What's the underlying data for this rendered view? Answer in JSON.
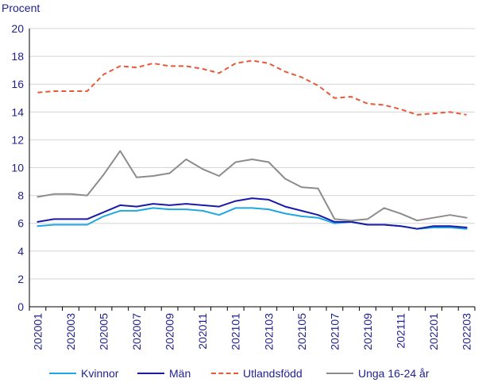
{
  "chart_data": {
    "type": "line",
    "title": "",
    "ylabel": "Procent",
    "xlabel": "",
    "ylim": [
      0,
      20
    ],
    "yticks": [
      "0",
      "2",
      "4",
      "6",
      "8",
      "10",
      "12",
      "14",
      "16",
      "18",
      "20"
    ],
    "x": [
      "202001",
      "202002",
      "202003",
      "202004",
      "202005",
      "202006",
      "202007",
      "202008",
      "202009",
      "202010",
      "202011",
      "202012",
      "202101",
      "202102",
      "202103",
      "202104",
      "202105",
      "202106",
      "202107",
      "202108",
      "202109",
      "202110",
      "202111",
      "202112",
      "202201",
      "202202",
      "202203"
    ],
    "xtick_labels": [
      "202001",
      "202003",
      "202005",
      "202007",
      "202009",
      "202011",
      "202101",
      "202103",
      "202105",
      "202107",
      "202109",
      "202111",
      "202201",
      "202203"
    ],
    "grid": "horizontal",
    "legend": "bottom",
    "series": [
      {
        "name": "Kvinnor",
        "color": "#1ea7e0",
        "dash": "solid",
        "values": [
          5.8,
          5.9,
          5.9,
          5.9,
          6.5,
          6.9,
          6.9,
          7.1,
          7.0,
          7.0,
          6.9,
          6.6,
          7.1,
          7.1,
          7.0,
          6.7,
          6.5,
          6.4,
          6.0,
          6.1,
          5.9,
          5.9,
          5.8,
          5.6,
          5.7,
          5.7,
          5.6
        ]
      },
      {
        "name": "Män",
        "color": "#1a1aa8",
        "dash": "solid",
        "values": [
          6.1,
          6.3,
          6.3,
          6.3,
          6.8,
          7.3,
          7.2,
          7.4,
          7.3,
          7.4,
          7.3,
          7.2,
          7.6,
          7.8,
          7.7,
          7.2,
          6.9,
          6.6,
          6.1,
          6.1,
          5.9,
          5.9,
          5.8,
          5.6,
          5.8,
          5.8,
          5.7
        ]
      },
      {
        "name": "Utlandsfödd",
        "color": "#e8593a",
        "dash": "dashed",
        "values": [
          15.4,
          15.5,
          15.5,
          15.5,
          16.7,
          17.3,
          17.2,
          17.5,
          17.3,
          17.3,
          17.1,
          16.8,
          17.5,
          17.7,
          17.5,
          16.9,
          16.5,
          15.9,
          15.0,
          15.1,
          14.6,
          14.5,
          14.2,
          13.8,
          13.9,
          14.0,
          13.8
        ]
      },
      {
        "name": "Unga 16-24 år",
        "color": "#8c8c8c",
        "dash": "solid",
        "values": [
          7.9,
          8.1,
          8.1,
          8.0,
          9.5,
          11.2,
          9.3,
          9.4,
          9.6,
          10.6,
          9.9,
          9.4,
          10.4,
          10.6,
          10.4,
          9.2,
          8.6,
          8.5,
          6.3,
          6.2,
          6.3,
          7.1,
          6.7,
          6.2,
          6.4,
          6.6,
          6.4
        ]
      }
    ]
  }
}
